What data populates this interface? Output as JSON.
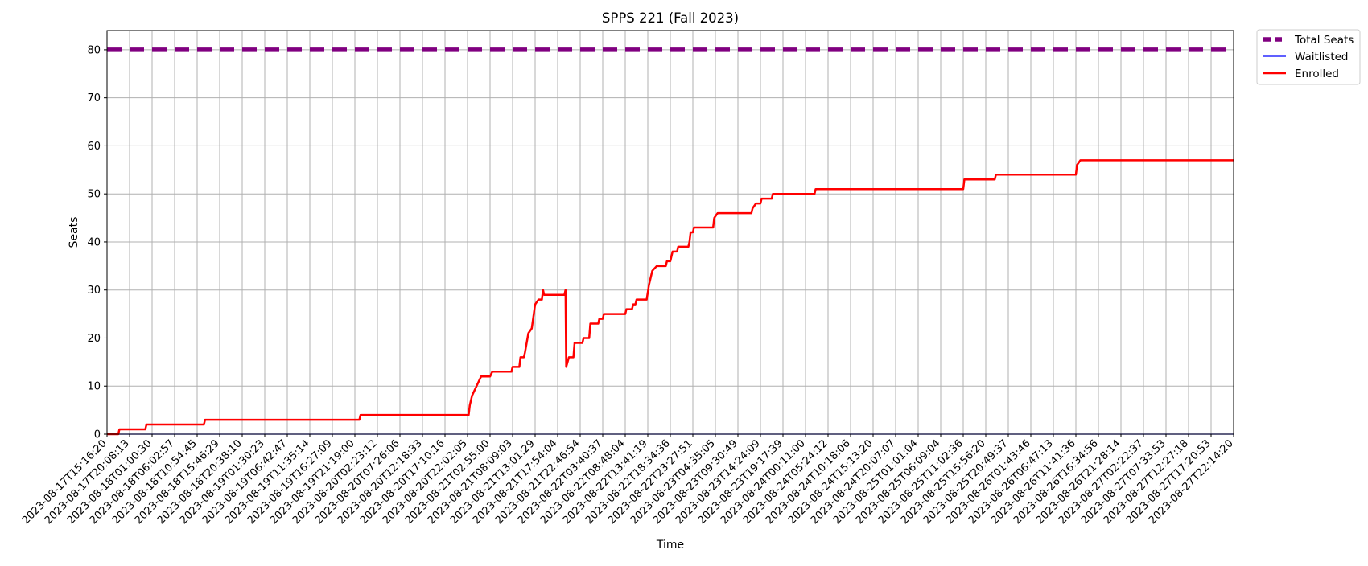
{
  "chart_data": {
    "type": "line",
    "title": "SPPS 221 (Fall 2023)",
    "xlabel": "Time",
    "ylabel": "Seats",
    "ylim": [
      0,
      84
    ],
    "yticks": [
      0,
      10,
      20,
      30,
      40,
      50,
      60,
      70,
      80
    ],
    "grid": true,
    "legend_position": "outside-top-right",
    "x_tick_labels": [
      "2023-08-17T15:16:20",
      "2023-08-17T20:08:13",
      "2023-08-18T01:00:30",
      "2023-08-18T06:02:57",
      "2023-08-18T10:54:45",
      "2023-08-18T15:46:29",
      "2023-08-18T20:38:10",
      "2023-08-19T01:30:23",
      "2023-08-19T06:42:47",
      "2023-08-19T11:35:14",
      "2023-08-19T16:27:09",
      "2023-08-19T21:19:00",
      "2023-08-20T02:23:12",
      "2023-08-20T07:26:06",
      "2023-08-20T12:18:33",
      "2023-08-20T17:10:16",
      "2023-08-20T22:02:05",
      "2023-08-21T02:55:00",
      "2023-08-21T08:09:03",
      "2023-08-21T13:01:29",
      "2023-08-21T17:54:04",
      "2023-08-21T22:46:54",
      "2023-08-22T03:40:37",
      "2023-08-22T08:48:04",
      "2023-08-22T13:41:19",
      "2023-08-22T18:34:36",
      "2023-08-22T23:27:51",
      "2023-08-23T04:35:05",
      "2023-08-23T09:30:49",
      "2023-08-23T14:24:09",
      "2023-08-23T19:17:39",
      "2023-08-24T00:11:00",
      "2023-08-24T05:24:12",
      "2023-08-24T10:18:06",
      "2023-08-24T15:13:20",
      "2023-08-24T20:07:07",
      "2023-08-25T01:01:04",
      "2023-08-25T06:09:04",
      "2023-08-25T11:02:36",
      "2023-08-25T15:56:20",
      "2023-08-25T20:49:37",
      "2023-08-26T01:43:46",
      "2023-08-26T06:47:13",
      "2023-08-26T11:41:36",
      "2023-08-26T16:34:56",
      "2023-08-26T21:28:14",
      "2023-08-27T02:22:37",
      "2023-08-27T07:33:53",
      "2023-08-27T12:27:18",
      "2023-08-27T17:20:53",
      "2023-08-27T22:14:20"
    ],
    "series": [
      {
        "name": "Total Seats",
        "color": "#800080",
        "style": "dashed",
        "points": [
          [
            0,
            80
          ],
          [
            50,
            80
          ]
        ]
      },
      {
        "name": "Waitlisted",
        "color": "#0000ff",
        "style": "solid",
        "points": [
          [
            0,
            0
          ],
          [
            50,
            0
          ]
        ]
      },
      {
        "name": "Enrolled",
        "color": "#ff0000",
        "style": "step",
        "points": [
          [
            0,
            0
          ],
          [
            0.5,
            0
          ],
          [
            0.55,
            1
          ],
          [
            1.7,
            1
          ],
          [
            1.75,
            2
          ],
          [
            4.3,
            2
          ],
          [
            4.35,
            3
          ],
          [
            11.2,
            3
          ],
          [
            11.25,
            4
          ],
          [
            16.05,
            4
          ],
          [
            16.1,
            6
          ],
          [
            16.2,
            8
          ],
          [
            16.3,
            9
          ],
          [
            16.4,
            10
          ],
          [
            16.5,
            11
          ],
          [
            16.6,
            12
          ],
          [
            17.0,
            12
          ],
          [
            17.1,
            13
          ],
          [
            17.95,
            13
          ],
          [
            18.0,
            14
          ],
          [
            18.3,
            14
          ],
          [
            18.35,
            16
          ],
          [
            18.5,
            16
          ],
          [
            18.55,
            17
          ],
          [
            18.7,
            21
          ],
          [
            18.85,
            22
          ],
          [
            19.0,
            27
          ],
          [
            19.15,
            28
          ],
          [
            19.3,
            28
          ],
          [
            19.35,
            30
          ],
          [
            19.4,
            29
          ],
          [
            20.3,
            29
          ],
          [
            20.35,
            30
          ],
          [
            20.38,
            14
          ],
          [
            20.5,
            16
          ],
          [
            20.7,
            16
          ],
          [
            20.75,
            19
          ],
          [
            21.1,
            19
          ],
          [
            21.15,
            20
          ],
          [
            21.4,
            20
          ],
          [
            21.45,
            23
          ],
          [
            21.8,
            23
          ],
          [
            21.85,
            24
          ],
          [
            22.0,
            24
          ],
          [
            22.05,
            25
          ],
          [
            23.0,
            25
          ],
          [
            23.05,
            26
          ],
          [
            23.3,
            26
          ],
          [
            23.35,
            27
          ],
          [
            23.45,
            27
          ],
          [
            23.5,
            28
          ],
          [
            23.95,
            28
          ],
          [
            24.05,
            31
          ],
          [
            24.2,
            34
          ],
          [
            24.4,
            35
          ],
          [
            24.8,
            35
          ],
          [
            24.85,
            36
          ],
          [
            25.0,
            36
          ],
          [
            25.1,
            38
          ],
          [
            25.3,
            38
          ],
          [
            25.35,
            39
          ],
          [
            25.8,
            39
          ],
          [
            25.85,
            40
          ],
          [
            25.9,
            42
          ],
          [
            26.0,
            42
          ],
          [
            26.05,
            43
          ],
          [
            26.9,
            43
          ],
          [
            26.95,
            45
          ],
          [
            27.1,
            46
          ],
          [
            28.6,
            46
          ],
          [
            28.65,
            47
          ],
          [
            28.8,
            48
          ],
          [
            29.0,
            48
          ],
          [
            29.05,
            49
          ],
          [
            29.5,
            49
          ],
          [
            29.55,
            50
          ],
          [
            31.4,
            50
          ],
          [
            31.45,
            51
          ],
          [
            38.0,
            51
          ],
          [
            38.05,
            53
          ],
          [
            39.4,
            53
          ],
          [
            39.45,
            54
          ],
          [
            43.0,
            54
          ],
          [
            43.05,
            56
          ],
          [
            43.2,
            57
          ],
          [
            50.0,
            57
          ]
        ]
      }
    ]
  }
}
